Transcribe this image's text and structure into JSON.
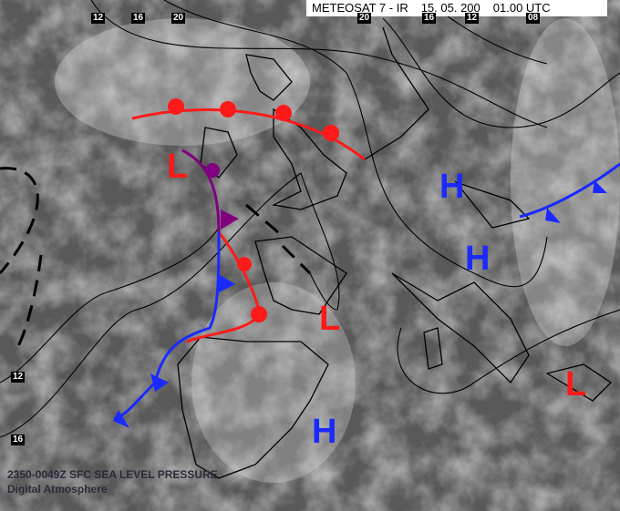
{
  "header": {
    "satellite": "METEOSAT 7 - IR",
    "date": "15. 05. 200",
    "time": "01.00 UTC"
  },
  "isobar_labels": {
    "top": [
      "12",
      "16",
      "20",
      "20",
      "16",
      "12",
      "08"
    ],
    "left": [
      "12",
      "16"
    ]
  },
  "pressure_systems": [
    {
      "label": "L",
      "type": "low",
      "color": "#ff1a1a"
    },
    {
      "label": "H",
      "type": "high",
      "color": "#1a2aff"
    },
    {
      "label": "H",
      "type": "high",
      "color": "#1a2aff"
    },
    {
      "label": "L",
      "type": "low",
      "color": "#ff1a1a"
    },
    {
      "label": "L",
      "type": "low",
      "color": "#ff1a1a"
    },
    {
      "label": "H",
      "type": "high",
      "color": "#1a2aff"
    }
  ],
  "footer": {
    "product": "2350-0049Z SFC SEA LEVEL PRESSURE",
    "source": "Digital Atmosphere"
  },
  "colors": {
    "warm_front": "#ff1a1a",
    "cold_front": "#1a2aff",
    "occluded_front": "#800080",
    "isobar": "#000000"
  }
}
